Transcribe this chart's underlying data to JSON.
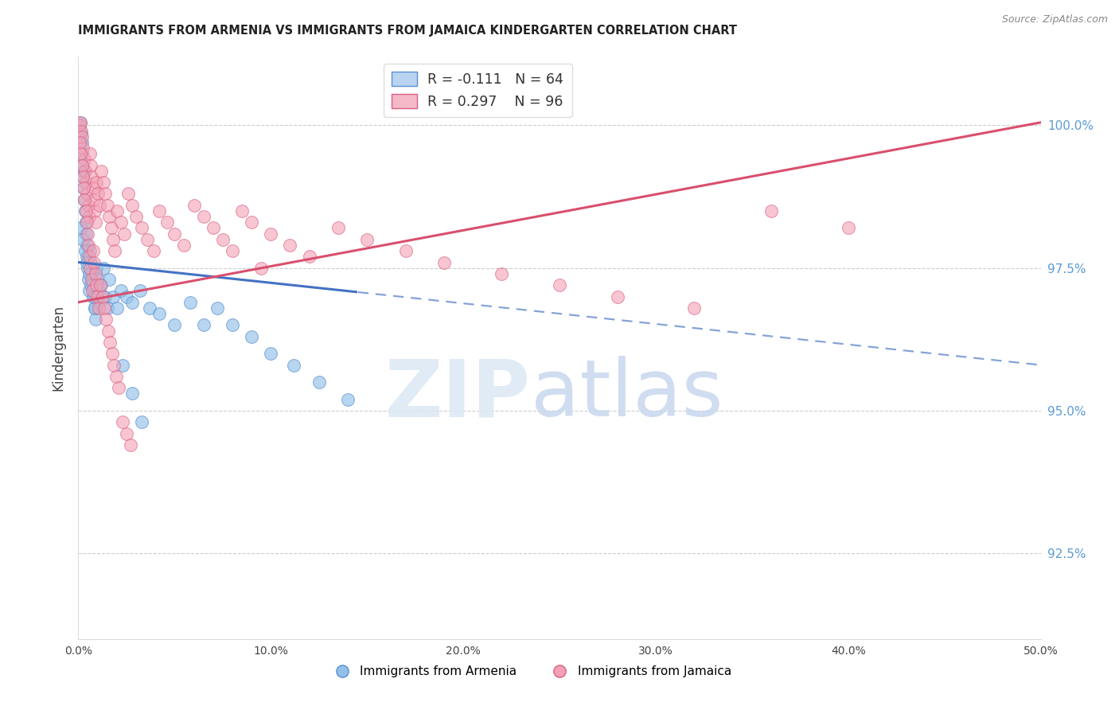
{
  "title": "IMMIGRANTS FROM ARMENIA VS IMMIGRANTS FROM JAMAICA KINDERGARTEN CORRELATION CHART",
  "source": "Source: ZipAtlas.com",
  "ylabel": "Kindergarten",
  "x_min": 0.0,
  "x_max": 50.0,
  "y_min": 91.0,
  "y_max": 101.2,
  "y_ticks": [
    92.5,
    95.0,
    97.5,
    100.0
  ],
  "y_tick_labels": [
    "92.5%",
    "95.0%",
    "97.5%",
    "100.0%"
  ],
  "blue_R": -0.111,
  "blue_N": 64,
  "pink_R": 0.297,
  "pink_N": 96,
  "blue_color": "#92c0e8",
  "pink_color": "#f4a0b5",
  "blue_edge_color": "#5b8fd4",
  "pink_edge_color": "#d96080",
  "blue_line_color": "#4472c4",
  "pink_line_color": "#d94f6e",
  "blue_line_y0": 97.6,
  "blue_line_y_at50": 95.8,
  "pink_line_y0": 96.9,
  "pink_line_y_at50": 100.05,
  "blue_solid_x_end": 14.5,
  "watermark_zip": "ZIP",
  "watermark_atlas": "atlas",
  "legend_blue_label_r": "R = -0.111",
  "legend_blue_label_n": "N = 64",
  "legend_pink_label_r": "R = 0.297",
  "legend_pink_label_n": "N = 96",
  "bottom_legend_blue": "Immigrants from Armenia",
  "bottom_legend_pink": "Immigrants from Jamaica",
  "blue_scatter_x": [
    0.05,
    0.08,
    0.12,
    0.15,
    0.18,
    0.2,
    0.22,
    0.25,
    0.28,
    0.3,
    0.32,
    0.35,
    0.38,
    0.4,
    0.42,
    0.45,
    0.48,
    0.5,
    0.55,
    0.6,
    0.65,
    0.7,
    0.75,
    0.8,
    0.85,
    0.9,
    0.95,
    1.0,
    1.05,
    1.1,
    1.2,
    1.3,
    1.4,
    1.5,
    1.6,
    1.8,
    2.0,
    2.2,
    2.5,
    2.8,
    3.2,
    3.7,
    4.2,
    5.0,
    5.8,
    6.5,
    7.2,
    8.0,
    9.0,
    10.0,
    11.2,
    12.5,
    14.0,
    2.3,
    2.8,
    3.3,
    0.15,
    0.25,
    0.35,
    0.45,
    0.55,
    0.65,
    0.75,
    0.85
  ],
  "blue_scatter_y": [
    100.0,
    99.9,
    100.05,
    99.85,
    99.7,
    99.5,
    99.3,
    99.1,
    98.9,
    98.7,
    99.2,
    98.5,
    98.3,
    98.1,
    97.9,
    97.7,
    97.5,
    97.3,
    97.1,
    97.8,
    97.6,
    97.4,
    97.2,
    97.0,
    96.8,
    96.6,
    97.5,
    97.3,
    97.1,
    96.9,
    97.2,
    97.5,
    97.0,
    96.8,
    97.3,
    97.0,
    96.8,
    97.1,
    97.0,
    96.9,
    97.1,
    96.8,
    96.7,
    96.5,
    96.9,
    96.5,
    96.8,
    96.5,
    96.3,
    96.0,
    95.8,
    95.5,
    95.2,
    95.8,
    95.3,
    94.8,
    98.2,
    98.0,
    97.8,
    97.6,
    97.4,
    97.2,
    97.0,
    96.8
  ],
  "pink_scatter_x": [
    0.05,
    0.1,
    0.15,
    0.2,
    0.25,
    0.3,
    0.35,
    0.4,
    0.45,
    0.5,
    0.55,
    0.6,
    0.65,
    0.7,
    0.75,
    0.8,
    0.85,
    0.9,
    0.95,
    1.0,
    1.1,
    1.2,
    1.3,
    1.4,
    1.5,
    1.6,
    1.7,
    1.8,
    1.9,
    2.0,
    2.2,
    2.4,
    2.6,
    2.8,
    3.0,
    3.3,
    3.6,
    3.9,
    4.2,
    4.6,
    5.0,
    5.5,
    6.0,
    6.5,
    7.0,
    7.5,
    8.0,
    8.5,
    9.0,
    9.5,
    10.0,
    11.0,
    12.0,
    13.5,
    15.0,
    17.0,
    19.0,
    22.0,
    25.0,
    28.0,
    32.0,
    36.0,
    40.0,
    0.08,
    0.12,
    0.18,
    0.22,
    0.28,
    0.32,
    0.38,
    0.42,
    0.48,
    0.52,
    0.58,
    0.62,
    0.68,
    0.72,
    0.78,
    0.82,
    0.88,
    0.92,
    0.98,
    1.05,
    1.15,
    1.25,
    1.35,
    1.45,
    1.55,
    1.65,
    1.75,
    1.85,
    1.95,
    2.1,
    2.3,
    2.5,
    2.7
  ],
  "pink_scatter_y": [
    100.0,
    100.05,
    99.9,
    99.8,
    99.6,
    99.4,
    99.2,
    99.0,
    98.8,
    98.6,
    98.4,
    99.5,
    99.3,
    99.1,
    98.9,
    98.7,
    98.5,
    98.3,
    99.0,
    98.8,
    98.6,
    99.2,
    99.0,
    98.8,
    98.6,
    98.4,
    98.2,
    98.0,
    97.8,
    98.5,
    98.3,
    98.1,
    98.8,
    98.6,
    98.4,
    98.2,
    98.0,
    97.8,
    98.5,
    98.3,
    98.1,
    97.9,
    98.6,
    98.4,
    98.2,
    98.0,
    97.8,
    98.5,
    98.3,
    97.5,
    98.1,
    97.9,
    97.7,
    98.2,
    98.0,
    97.8,
    97.6,
    97.4,
    97.2,
    97.0,
    96.8,
    98.5,
    98.2,
    99.7,
    99.5,
    99.3,
    99.1,
    98.9,
    98.7,
    98.5,
    98.3,
    98.1,
    97.9,
    97.7,
    97.5,
    97.3,
    97.1,
    97.8,
    97.6,
    97.4,
    97.2,
    97.0,
    96.8,
    97.2,
    97.0,
    96.8,
    96.6,
    96.4,
    96.2,
    96.0,
    95.8,
    95.6,
    95.4,
    94.8,
    94.6,
    94.4
  ]
}
